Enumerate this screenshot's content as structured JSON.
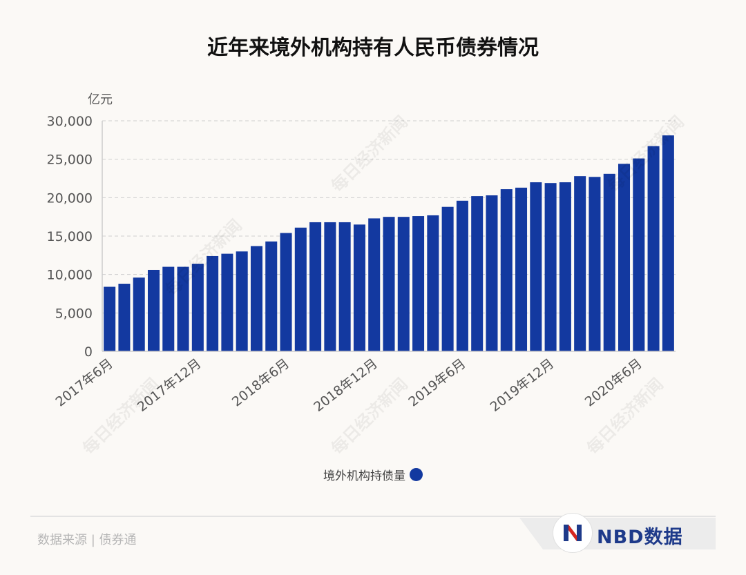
{
  "title": "近年来境外机构持有人民币债券情况",
  "unit_label": "亿元",
  "legend": {
    "label": "境外机构持债量",
    "color": "#1339a0"
  },
  "source": "数据来源 | 债券通",
  "brand": {
    "text": "NBD数据",
    "logo_icon": "nbd-n-logo-icon"
  },
  "watermark": "每日经济新闻",
  "chart_data": {
    "type": "bar",
    "title": "近年来境外机构持有人民币债券情况",
    "ylabel": "亿元",
    "ylim": [
      0,
      30000
    ],
    "yticks": [
      "0",
      "5,000",
      "10,000",
      "15,000",
      "20,000",
      "25,000",
      "30,000"
    ],
    "grid": true,
    "legend_position": "bottom",
    "tick_labels": [
      {
        "index": 0,
        "label": "2017年6月"
      },
      {
        "index": 6,
        "label": "2017年12月"
      },
      {
        "index": 12,
        "label": "2018年6月"
      },
      {
        "index": 18,
        "label": "2018年12月"
      },
      {
        "index": 24,
        "label": "2019年6月"
      },
      {
        "index": 30,
        "label": "2019年12月"
      },
      {
        "index": 36,
        "label": "2020年6月"
      }
    ],
    "series": [
      {
        "name": "境外机构持债量",
        "color": "#1339a0",
        "values": [
          8400,
          8800,
          9600,
          10600,
          11000,
          11000,
          11400,
          12400,
          12700,
          13000,
          13700,
          14300,
          15400,
          16100,
          16800,
          16800,
          16800,
          16500,
          17300,
          17500,
          17500,
          17600,
          17700,
          18800,
          19600,
          20200,
          20300,
          21100,
          21300,
          22000,
          21900,
          22000,
          22800,
          22700,
          23100,
          24400,
          25100,
          26700,
          28100
        ]
      }
    ]
  }
}
